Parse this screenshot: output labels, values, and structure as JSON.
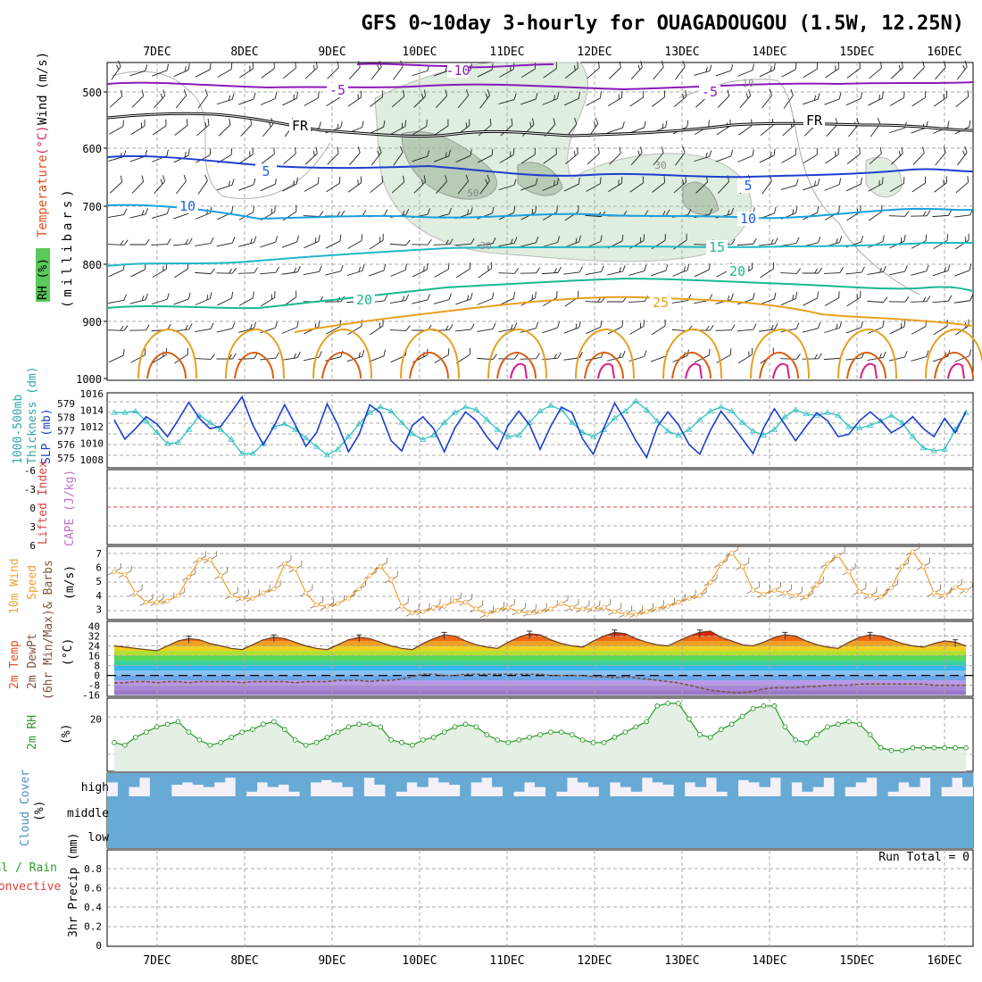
{
  "title": "GFS 0~10day 3-hourly for OUAGADOUGOU (1.5W, 12.25N)",
  "days": [
    "7DEC",
    "8DEC",
    "9DEC",
    "10DEC",
    "11DEC",
    "12DEC",
    "13DEC",
    "14DEC",
    "15DEC",
    "16DEC"
  ],
  "colors": {
    "grid": "#a8a8a8",
    "frame": "#000000",
    "isotherm_warm": "#e6a020",
    "isotherm_hot": "#d85e10",
    "isotherm_cool": "#18b890",
    "isotherm_cold": "#2060e0",
    "isotherm_purple": "#8a1ab8",
    "rh_fill": "#d8ead8",
    "rh_dark": "#9fb89f",
    "slp": "#1d3ecb",
    "thickness": "#30c0c0",
    "wind_speed": "#f0a030",
    "barbs": "#8a6a4a",
    "dewpt": "#7a5040",
    "rh2m": "#2a9a2a",
    "cloud": "#67aad6",
    "cloud_bg": "#f4f0f8",
    "li_zero": "#e04040"
  },
  "panels": {
    "upper": {
      "ylabel_rh": "RH (%)",
      "ylabel_temp": "Temperature",
      "ylabel_unit": "(°C)",
      "ylabel_wind": "Wind",
      "ylabel_wind_unit": "(m/s)",
      "ylabel_pressure": "(millibars)",
      "pressure_ticks": [
        "500",
        "600",
        "700",
        "800",
        "900",
        "1000"
      ],
      "isotherm_labels": [
        {
          "text": "-10",
          "level": "top-1",
          "day": "10DEC",
          "color": "isotherm_purple"
        },
        {
          "text": "-5",
          "level": "top-2",
          "day": "9DEC",
          "color": "isotherm_purple"
        },
        {
          "text": "-5",
          "level": "top-3",
          "day": "13DEC",
          "color": "isotherm_purple"
        },
        {
          "text": "FR",
          "level": "fr-1",
          "day": "8DEC",
          "color": "frame"
        },
        {
          "text": "FR",
          "level": "fr-2",
          "day": "14DEC",
          "color": "frame"
        },
        {
          "text": "5",
          "level": "t5-1",
          "day": "9DEC",
          "color": "isotherm_cold"
        },
        {
          "text": "5",
          "level": "t5-2",
          "day": "13DEC",
          "color": "isotherm_cold"
        },
        {
          "text": "10",
          "level": "t10-1",
          "day": "7DEC",
          "color": "isotherm_cold"
        },
        {
          "text": "10",
          "level": "t10-2",
          "day": "13DEC",
          "color": "isotherm_cold"
        },
        {
          "text": "15",
          "level": "t15",
          "day": "13DEC",
          "color": "isotherm_cool"
        },
        {
          "text": "20",
          "level": "t20-1",
          "day": "9DEC",
          "color": "isotherm_cool"
        },
        {
          "text": "20",
          "level": "t20-2",
          "day": "14DEC",
          "color": "isotherm_cool"
        },
        {
          "text": "25",
          "level": "t25",
          "day": "12DEC",
          "color": "isotherm_warm"
        }
      ],
      "rh_labels": [
        "10",
        "30",
        "30",
        "50"
      ]
    },
    "thickness": {
      "ylabel_left": "1000-500mb",
      "ylabel_left2": "Thickness (dm)",
      "ylabel_right": "SLP (mb)",
      "ticks_left": [
        "579",
        "578",
        "577",
        "576",
        "575"
      ],
      "ticks_right": [
        "1016",
        "1014",
        "1012",
        "1010",
        "1008"
      ]
    },
    "li": {
      "ylabel_left": "Lifted Index",
      "ylabel_right": "CAPE (J/kg)",
      "ticks": [
        "-6",
        "-3",
        "0",
        "3",
        "6"
      ]
    },
    "wind10": {
      "ylabel_1": "10m Wind",
      "ylabel_2": "Speed",
      "ylabel_3": "& Barbs",
      "ylabel_unit": "(m/s)",
      "ticks": [
        "7",
        "6",
        "5",
        "4",
        "3"
      ]
    },
    "temp2m": {
      "ylabel_1": "2m Temp",
      "ylabel_2": "2m DewPt",
      "ylabel_3": "(6hr Min/Max)",
      "ylabel_unit": "(°C)",
      "ticks": [
        "40",
        "32",
        "24",
        "16",
        "8",
        "0",
        "-8",
        "-16"
      ]
    },
    "rh2m": {
      "ylabel": "2m RH",
      "ylabel_unit": "(%)",
      "ticks": [
        "20"
      ]
    },
    "cloud": {
      "ylabel": "Cloud Cover",
      "ylabel_unit": "(%)",
      "levels": [
        "high",
        "middle",
        "low"
      ]
    },
    "precip": {
      "ylabel_1": "Total / Rain",
      "ylabel_2": "Convective",
      "ylabel_3": "3hr Precip (mm)",
      "ticks": [
        "0.8",
        "0.6",
        "0.4",
        "0.2",
        "0"
      ],
      "run_total": "Run Total = 0"
    }
  },
  "chart_data": [
    {
      "panel": "thickness_slp",
      "type": "line",
      "x_unit": "hours from 6DEC 15Z (3-hourly)",
      "series": [
        {
          "name": "1000-500mb Thickness (dm)",
          "axis": "left",
          "values": [
            578.2,
            578.2,
            578.3,
            577.6,
            576.8,
            576.0,
            576.1,
            577.0,
            578.0,
            577.5,
            577.0,
            576.3,
            575.3,
            575.3,
            576.0,
            577.2,
            577.4,
            577.0,
            576.4,
            575.8,
            575.2,
            575.6,
            576.5,
            577.4,
            578.2,
            578.6,
            578.3,
            577.5,
            576.7,
            576.3,
            576.6,
            577.5,
            578.2,
            578.6,
            578.4,
            577.7,
            577.0,
            576.5,
            576.6,
            577.5,
            578.3,
            578.7,
            578.4,
            577.5,
            576.8,
            576.5,
            577.0,
            577.8,
            578.3,
            579.0,
            578.4,
            577.6,
            576.9,
            576.6,
            577.0,
            577.7,
            578.3,
            578.6,
            578.3,
            577.5,
            576.9,
            576.6,
            577.0,
            577.9,
            578.4,
            578.1,
            578.0,
            578.2,
            578.0,
            577.2,
            577.1,
            577.3,
            577.6,
            578.0,
            577.5,
            576.5,
            575.7,
            575.5,
            575.6,
            577.0,
            578.2
          ]
        },
        {
          "name": "SLP (mb)",
          "axis": "right",
          "values": [
            1012.6,
            1010.2,
            1011.5,
            1013.0,
            1012.1,
            1010.5,
            1012.6,
            1014.8,
            1012.8,
            1011.5,
            1011.8,
            1013.6,
            1015.5,
            1012.0,
            1009.5,
            1011.8,
            1014.5,
            1012.0,
            1009.3,
            1011.0,
            1014.6,
            1012.0,
            1008.6,
            1010.8,
            1014.5,
            1013.5,
            1010.0,
            1008.7,
            1011.9,
            1013.0,
            1011.5,
            1008.6,
            1011.6,
            1013.6,
            1012.5,
            1010.5,
            1008.9,
            1011.9,
            1013.7,
            1012.0,
            1008.9,
            1011.8,
            1014.2,
            1013.5,
            1010.2,
            1008.3,
            1011.6,
            1014.7,
            1012.5,
            1010.0,
            1007.9,
            1011.7,
            1013.6,
            1012.0,
            1009.5,
            1008.3,
            1011.3,
            1013.7,
            1012.0,
            1010.2,
            1008.4,
            1011.6,
            1014.0,
            1012.0,
            1010.0,
            1011.8,
            1013.5,
            1012.5,
            1010.5,
            1010.8,
            1012.5,
            1013.6,
            1012.5,
            1011.0,
            1011.8,
            1013.0,
            1011.5,
            1010.5,
            1012.8,
            1011.0,
            1013.6
          ]
        }
      ],
      "ylim_left": [
        574.3,
        579.6
      ],
      "ylim_right": [
        1006.6,
        1016
      ]
    },
    {
      "panel": "lifted_index",
      "type": "line",
      "series": [
        {
          "name": "Lifted Index",
          "values": []
        }
      ],
      "reference_line": 0,
      "ylim": [
        6,
        -6
      ]
    },
    {
      "panel": "wind10m",
      "type": "line",
      "series": [
        {
          "name": "10m Wind Speed (m/s)",
          "values": [
            5.6,
            5.4,
            4.0,
            3.3,
            3.3,
            3.4,
            3.8,
            5.2,
            6.5,
            6.5,
            5.3,
            3.8,
            3.6,
            3.6,
            4.0,
            4.3,
            6.2,
            5.8,
            4.0,
            3.1,
            3.0,
            3.2,
            3.6,
            4.3,
            5.3,
            6.0,
            5.0,
            3.0,
            2.5,
            2.6,
            2.9,
            3.0,
            3.4,
            3.3,
            2.8,
            2.4,
            2.7,
            2.9,
            2.6,
            2.5,
            2.6,
            2.8,
            3.2,
            2.9,
            2.8,
            2.8,
            2.9,
            2.6,
            2.4,
            2.4,
            2.6,
            2.8,
            3.0,
            3.3,
            3.6,
            3.8,
            4.8,
            6.2,
            7.0,
            6.0,
            4.2,
            3.9,
            4.2,
            4.0,
            3.8,
            3.7,
            4.6,
            6.2,
            6.8,
            5.6,
            4.1,
            3.8,
            3.7,
            4.4,
            6.0,
            7.1,
            6.0,
            4.0,
            3.8,
            4.4,
            4.2
          ]
        }
      ],
      "ylim": [
        2.0,
        7.5
      ]
    },
    {
      "panel": "temp2m",
      "type": "area",
      "series": [
        {
          "name": "2m Temp (°C)",
          "values": [
            24,
            23,
            22,
            21,
            20,
            24,
            28,
            30,
            29,
            26,
            24,
            22,
            21,
            25,
            29,
            31,
            30,
            27,
            24,
            22,
            21,
            25,
            29,
            31,
            30,
            27,
            24,
            22,
            21,
            26,
            30,
            33,
            32,
            28,
            25,
            23,
            22,
            27,
            31,
            34,
            33,
            29,
            26,
            24,
            23,
            28,
            32,
            35,
            34,
            30,
            27,
            25,
            24,
            28,
            32,
            35,
            36,
            31,
            28,
            25,
            24,
            27,
            31,
            33,
            32,
            28,
            25,
            23,
            22,
            27,
            31,
            33,
            32,
            29,
            26,
            24,
            23,
            26,
            28,
            27,
            24
          ]
        },
        {
          "name": "2m DewPt (°C)",
          "values": [
            -6,
            -6,
            -5,
            -5,
            -6,
            -5,
            -5,
            -6,
            -5,
            -5,
            -5,
            -5,
            -6,
            -5,
            -5,
            -5,
            -5,
            -6,
            -5,
            -5,
            -5,
            -4,
            -4,
            -4,
            -5,
            -4,
            -4,
            -3,
            -1,
            1,
            1,
            0,
            0,
            1,
            1,
            1,
            1,
            1,
            1,
            1,
            1,
            0,
            0,
            0,
            0,
            -1,
            -1,
            -2,
            -1,
            -2,
            -3,
            -4,
            -5,
            -6,
            -8,
            -10,
            -12,
            -13,
            -14,
            -14,
            -13,
            -11,
            -10,
            -10,
            -10,
            -9,
            -9,
            -8,
            -8,
            -8,
            -7,
            -7,
            -7,
            -7,
            -7,
            -7,
            -7,
            -8,
            -8,
            -8,
            -8
          ]
        }
      ],
      "ylim": [
        -17,
        44
      ]
    },
    {
      "panel": "rh2m",
      "type": "line",
      "series": [
        {
          "name": "2m RH (%)",
          "values": [
            11,
            10,
            13,
            15,
            17,
            18,
            19,
            15,
            12,
            10,
            11,
            13,
            15,
            16,
            18,
            19,
            16,
            12,
            10,
            11,
            13,
            15,
            17,
            18,
            18,
            17,
            12,
            11,
            10,
            12,
            13,
            15,
            17,
            18,
            17,
            14,
            12,
            11,
            12,
            13,
            14,
            15,
            15,
            14,
            12,
            11,
            11,
            13,
            15,
            17,
            19,
            25,
            26,
            26,
            20,
            14,
            13,
            16,
            18,
            21,
            24,
            25,
            25,
            17,
            12,
            11,
            14,
            17,
            18,
            19,
            18,
            14,
            9,
            8,
            8,
            9,
            9,
            9,
            9,
            9,
            9
          ]
        }
      ],
      "ylim": [
        0,
        28
      ]
    },
    {
      "panel": "cloud_high",
      "type": "bar",
      "series": [
        {
          "name": "high (%)",
          "values": [
            40,
            100,
            60,
            20,
            100,
            100,
            50,
            40,
            50,
            60,
            40,
            20,
            100,
            80,
            40,
            60,
            50,
            80,
            100,
            40,
            30,
            40,
            60,
            100,
            20,
            50,
            100,
            80,
            40,
            60,
            20,
            40,
            50,
            100,
            40,
            20,
            60,
            100,
            80,
            40,
            60,
            100,
            80,
            20,
            40,
            60,
            100,
            40,
            60,
            80,
            20,
            40,
            50,
            100,
            40,
            60,
            20,
            80,
            100,
            30,
            40,
            60,
            20,
            100,
            40,
            80,
            60,
            20,
            100,
            60,
            40,
            20,
            100,
            80,
            40,
            60,
            20,
            100,
            60,
            20,
            60
          ]
        }
      ],
      "ylim": [
        0,
        100
      ]
    },
    {
      "panel": "precip",
      "type": "bar",
      "series": [
        {
          "name": "3hr Precip (mm)",
          "values": []
        }
      ],
      "ylim": [
        0,
        1.0
      ]
    }
  ]
}
